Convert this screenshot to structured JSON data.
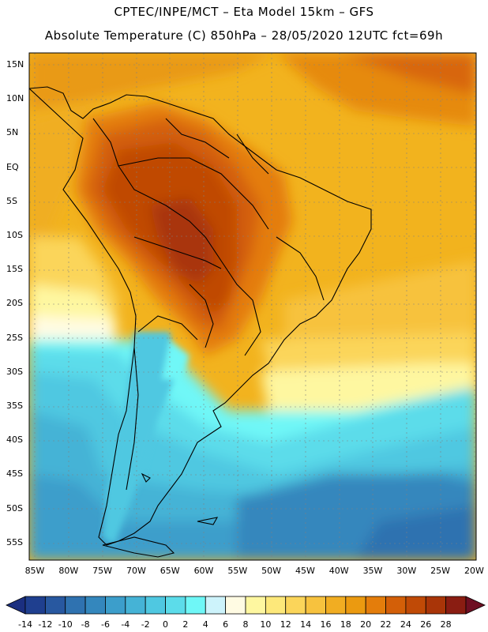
{
  "title_line1": "CPTEC/INPE/MCT –  Eta Model 15km – GFS",
  "title_line2": "Absolute Temperature (C) 850hPa – 28/05/2020 12UTC fct=69h",
  "lat_labels": [
    "15N",
    "10N",
    "5N",
    "EQ",
    "5S",
    "10S",
    "15S",
    "20S",
    "25S",
    "30S",
    "35S",
    "40S",
    "45S",
    "50S",
    "55S"
  ],
  "lon_labels": [
    "85W",
    "80W",
    "75W",
    "70W",
    "65W",
    "60W",
    "55W",
    "50W",
    "45W",
    "40W",
    "35W",
    "30W",
    "25W",
    "20W"
  ],
  "colorbar": {
    "labels": [
      "-14",
      "-12",
      "-10",
      "-8",
      "-6",
      "-4",
      "-2",
      "0",
      "2",
      "4",
      "6",
      "8",
      "10",
      "12",
      "14",
      "16",
      "18",
      "20",
      "22",
      "24",
      "26",
      "28"
    ],
    "colors": [
      "#1f3f8f",
      "#2858a0",
      "#2f72b0",
      "#3487bd",
      "#3c9ecb",
      "#45b3d6",
      "#4fc8e1",
      "#5cdcea",
      "#6ff7f7",
      "#cdf3fb",
      "#fffbe3",
      "#fef7a0",
      "#fde87a",
      "#fbd55a",
      "#f7c23e",
      "#f1ad22",
      "#eb9a10",
      "#e47d0b",
      "#d35f08",
      "#c04a06",
      "#a93508",
      "#8a1d12"
    ],
    "under_color": "#1b2f80",
    "over_color": "#6e0f22"
  }
}
